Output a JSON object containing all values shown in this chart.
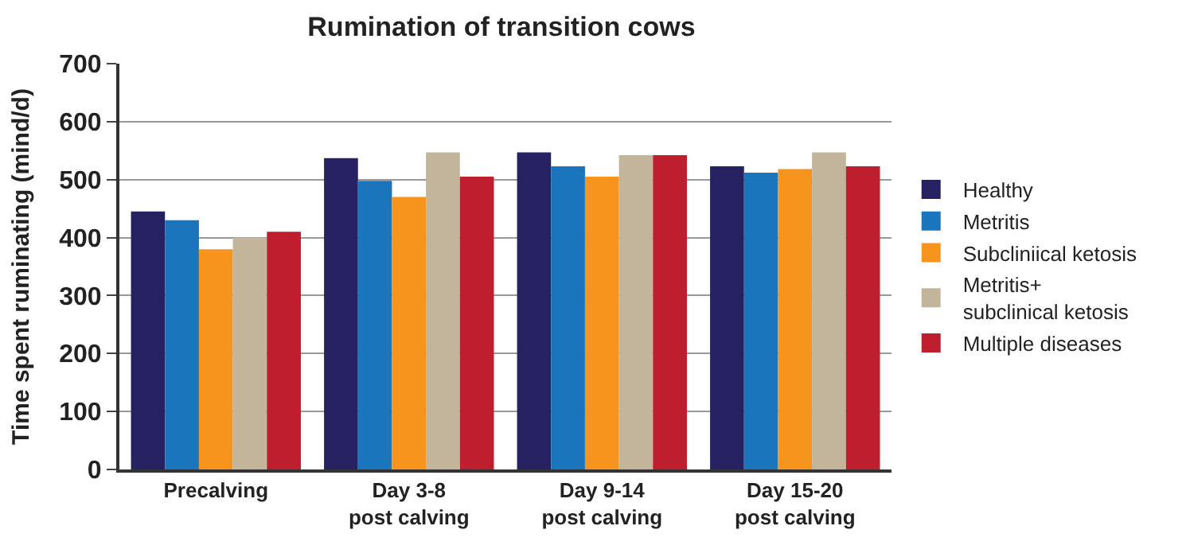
{
  "chart_data": {
    "type": "bar",
    "title": "Rumination of transition cows",
    "ylabel": "Time spent ruminating (mind/d)",
    "categories": [
      "Precalving",
      "Day 3-8\npost calving",
      "Day 9-14\npost calving",
      "Day 15-20\npost calving"
    ],
    "series": [
      {
        "name": "Healthy",
        "color": "#262262",
        "values": [
          445,
          537,
          547,
          523
        ]
      },
      {
        "name": "Metritis",
        "color": "#1b75bc",
        "values": [
          430,
          498,
          523,
          512
        ]
      },
      {
        "name": "Subcliniical ketosis",
        "color": "#f7941d",
        "values": [
          380,
          470,
          505,
          518
        ]
      },
      {
        "name": "Metritis+\nsubclinical ketosis",
        "color": "#c2b59b",
        "values": [
          400,
          547,
          542,
          547
        ]
      },
      {
        "name": "Multiple diseases",
        "color": "#be1e2d",
        "values": [
          410,
          505,
          542,
          523
        ]
      }
    ],
    "ylim": [
      0,
      700
    ],
    "yticks": [
      0,
      100,
      200,
      300,
      400,
      500,
      600,
      700
    ],
    "grid": "y",
    "legend": "right"
  }
}
